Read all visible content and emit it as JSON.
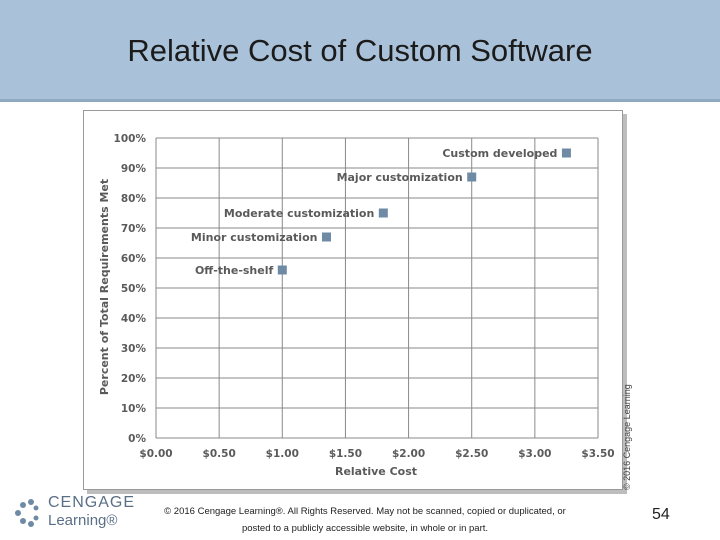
{
  "slide": {
    "title": "Relative Cost of Custom Software",
    "footer": "© 2016 Cengage Learning®. All Rights Reserved. May not be scanned, copied or duplicated, or posted to a publicly accessible website, in whole or in part.",
    "page_number": "54",
    "logo_line1": "CENGAGE",
    "logo_line2": "Learning®"
  },
  "chart_data": {
    "type": "scatter",
    "title": "",
    "xlabel": "Relative Cost",
    "ylabel": "Percent of Total Requirements Met",
    "xlim": [
      0,
      3.5
    ],
    "ylim": [
      0,
      100
    ],
    "x_ticks": [
      "$0.00",
      "$0.50",
      "$1.00",
      "$1.50",
      "$2.00",
      "$2.50",
      "$3.00",
      "$3.50"
    ],
    "y_ticks": [
      "0%",
      "10%",
      "20%",
      "30%",
      "40%",
      "50%",
      "60%",
      "70%",
      "80%",
      "90%",
      "100%"
    ],
    "grid": true,
    "points": [
      {
        "label": "Off-the-shelf",
        "x": 1.0,
        "y": 56
      },
      {
        "label": "Minor customization",
        "x": 1.35,
        "y": 67
      },
      {
        "label": "Moderate customization",
        "x": 1.8,
        "y": 75
      },
      {
        "label": "Major customization",
        "x": 2.5,
        "y": 87
      },
      {
        "label": "Custom developed",
        "x": 3.25,
        "y": 95
      }
    ],
    "marker_color": "#6f8aa5",
    "copyright": "© 2016 Cengage Learning"
  }
}
